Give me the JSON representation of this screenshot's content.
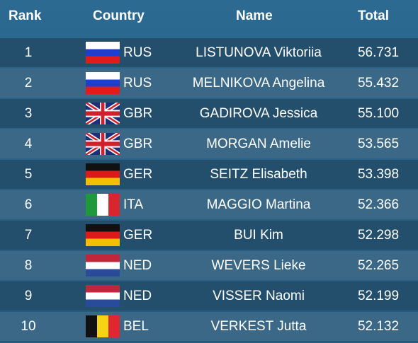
{
  "header": {
    "rank": "Rank",
    "country": "Country",
    "name": "Name",
    "total": "Total"
  },
  "rows": [
    {
      "rank": "1",
      "code": "RUS",
      "name": "LISTUNOVA Viktoriia",
      "total": "56.731",
      "flag": "russia-flag-icon"
    },
    {
      "rank": "2",
      "code": "RUS",
      "name": "MELNIKOVA Angelina",
      "total": "55.432",
      "flag": "russia-flag-icon"
    },
    {
      "rank": "3",
      "code": "GBR",
      "name": "GADIROVA Jessica",
      "total": "55.100",
      "flag": "uk-flag-icon"
    },
    {
      "rank": "4",
      "code": "GBR",
      "name": "MORGAN Amelie",
      "total": "53.565",
      "flag": "uk-flag-icon"
    },
    {
      "rank": "5",
      "code": "GER",
      "name": "SEITZ Elisabeth",
      "total": "53.398",
      "flag": "germany-flag-icon"
    },
    {
      "rank": "6",
      "code": "ITA",
      "name": "MAGGIO Martina",
      "total": "52.366",
      "flag": "italy-flag-icon"
    },
    {
      "rank": "7",
      "code": "GER",
      "name": "BUI Kim",
      "total": "52.298",
      "flag": "germany-flag-icon"
    },
    {
      "rank": "8",
      "code": "NED",
      "name": "WEVERS Lieke",
      "total": "52.265",
      "flag": "netherlands-flag-icon"
    },
    {
      "rank": "9",
      "code": "NED",
      "name": "VISSER Naomi",
      "total": "52.199",
      "flag": "netherlands-flag-icon"
    },
    {
      "rank": "10",
      "code": "BEL",
      "name": "VERKEST Jutta",
      "total": "52.132",
      "flag": "belgium-flag-icon"
    }
  ]
}
